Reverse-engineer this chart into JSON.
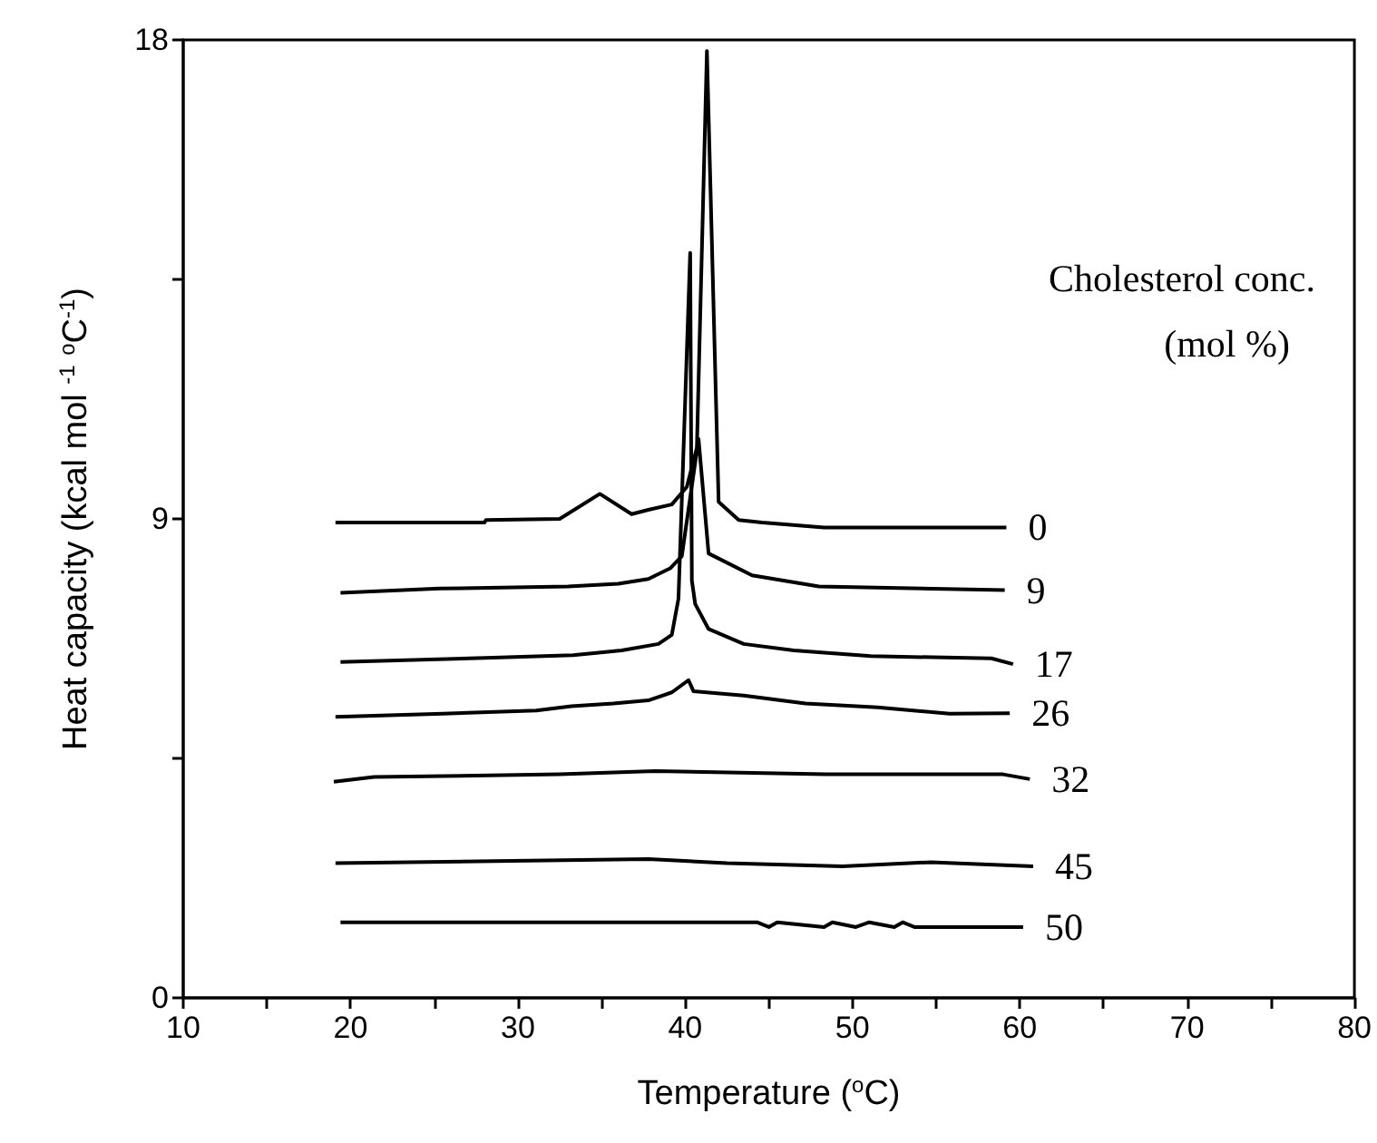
{
  "chart_data": {
    "type": "line",
    "xlabel": "Temperature ($^{o}$C)",
    "ylabel": "Heat capacity (kcal mol $^{-1}$ $^{o}$C$^{-1}$)",
    "annotations": [
      "Cholesterol conc.",
      "(mol %)"
    ],
    "xlim": [
      10,
      80
    ],
    "xticks": [
      10,
      {
        "value": 15,
        "label": null
      },
      20,
      {
        "value": 25,
        "label": null
      },
      30,
      {
        "value": 35,
        "label": null
      },
      40,
      {
        "value": 45,
        "label": null
      },
      50,
      {
        "value": 55,
        "label": null
      },
      60,
      {
        "value": 65,
        "label": null
      },
      70,
      {
        "value": 75,
        "label": null
      },
      80
    ],
    "ylim": [
      0,
      18
    ],
    "yticks": [
      0,
      {
        "value": 4.5,
        "label": null
      },
      9,
      {
        "value": 13.5,
        "label": null
      },
      18
    ],
    "grid": false,
    "legend": false,
    "marker": "none",
    "line_style": "solid",
    "series": [
      {
        "name": "0",
        "color": "#000000",
        "x": [
          19.1,
          28.0,
          28.1,
          32.5,
          34.9,
          36.8,
          37.8,
          39.2,
          40.1,
          40.7,
          41.3,
          42.0,
          43.2,
          44.6,
          48.3,
          59.2
        ],
        "values": [
          8.93,
          8.93,
          8.98,
          9.0,
          9.47,
          9.09,
          9.17,
          9.27,
          9.6,
          10.34,
          17.79,
          9.32,
          8.98,
          8.93,
          8.84,
          8.84
        ]
      },
      {
        "name": "9",
        "color": "#000000",
        "x": [
          19.4,
          25.3,
          33.0,
          36.0,
          37.8,
          39.1,
          39.8,
          40.8,
          41.4,
          44.0,
          48.0,
          59.1
        ],
        "values": [
          7.61,
          7.69,
          7.73,
          7.78,
          7.87,
          8.07,
          8.3,
          10.5,
          8.35,
          7.94,
          7.73,
          7.66
        ]
      },
      {
        "name": "17",
        "color": "#000000",
        "x": [
          19.4,
          28.5,
          33.3,
          36.2,
          38.4,
          39.2,
          39.6,
          40.3,
          40.4,
          40.6,
          41.4,
          43.5,
          46.5,
          51.1,
          58.3,
          59.6
        ],
        "values": [
          6.31,
          6.39,
          6.44,
          6.53,
          6.65,
          6.82,
          7.5,
          14.0,
          7.84,
          7.4,
          6.93,
          6.65,
          6.53,
          6.42,
          6.38,
          6.27
        ]
      },
      {
        "name": "26",
        "color": "#000000",
        "x": [
          19.1,
          25.5,
          31.1,
          33.2,
          35.7,
          37.8,
          39.2,
          40.2,
          40.5,
          43.5,
          47.2,
          51.5,
          55.8,
          59.4
        ],
        "values": [
          5.28,
          5.34,
          5.4,
          5.48,
          5.53,
          5.59,
          5.74,
          5.97,
          5.76,
          5.68,
          5.53,
          5.46,
          5.34,
          5.35
        ]
      },
      {
        "name": "32",
        "color": "#000000",
        "x": [
          19.0,
          21.4,
          32.5,
          38.2,
          48.4,
          59.0,
          60.6
        ],
        "values": [
          4.06,
          4.15,
          4.2,
          4.26,
          4.2,
          4.2,
          4.11
        ]
      },
      {
        "name": "45",
        "color": "#000000",
        "x": [
          19.1,
          37.8,
          42.5,
          49.4,
          54.7,
          60.8
        ],
        "values": [
          2.53,
          2.61,
          2.53,
          2.47,
          2.55,
          2.47
        ]
      },
      {
        "name": "50",
        "color": "#000000",
        "x": [
          19.4,
          44.3,
          45.0,
          45.5,
          48.3,
          48.8,
          50.2,
          51.0,
          52.5,
          53.0,
          53.7,
          60.2
        ],
        "values": [
          1.42,
          1.42,
          1.33,
          1.42,
          1.33,
          1.42,
          1.33,
          1.42,
          1.33,
          1.42,
          1.33,
          1.33
        ]
      }
    ]
  }
}
